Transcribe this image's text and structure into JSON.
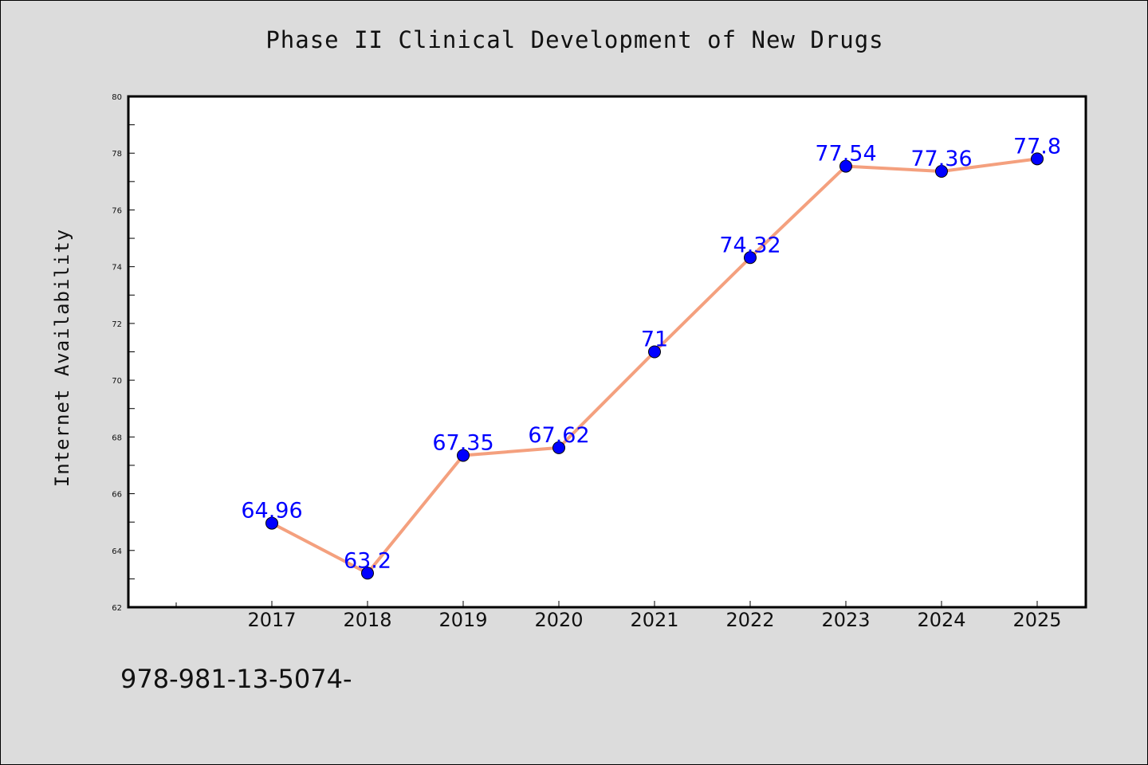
{
  "chart_data": {
    "type": "line",
    "title": "Phase II Clinical Development of New Drugs",
    "xlabel": "",
    "ylabel": "Internet Availability",
    "categories": [
      "2017",
      "2018",
      "2019",
      "2020",
      "2021",
      "2022",
      "2023",
      "2024",
      "2025"
    ],
    "series": [
      {
        "values": [
          64.96,
          63.2,
          67.35,
          67.62,
          71,
          74.32,
          77.54,
          77.36,
          77.8
        ],
        "labels": [
          "64.96",
          "63.2",
          "67.35",
          "67.62",
          "71",
          "74.32",
          "77.54",
          "77.36",
          "77.8"
        ],
        "line_color": "#f4a07e",
        "marker_color": "#0000ff",
        "label_color": "#0000ff"
      }
    ],
    "ylim": [
      62,
      80
    ],
    "yticks": [
      "62",
      "64",
      "66",
      "68",
      "70",
      "72",
      "74",
      "76",
      "78",
      "80"
    ],
    "grid": false,
    "background": "#dcdcdc",
    "plot_background": "#ffffff"
  },
  "footer": {
    "text": "978-981-13-5074-"
  }
}
